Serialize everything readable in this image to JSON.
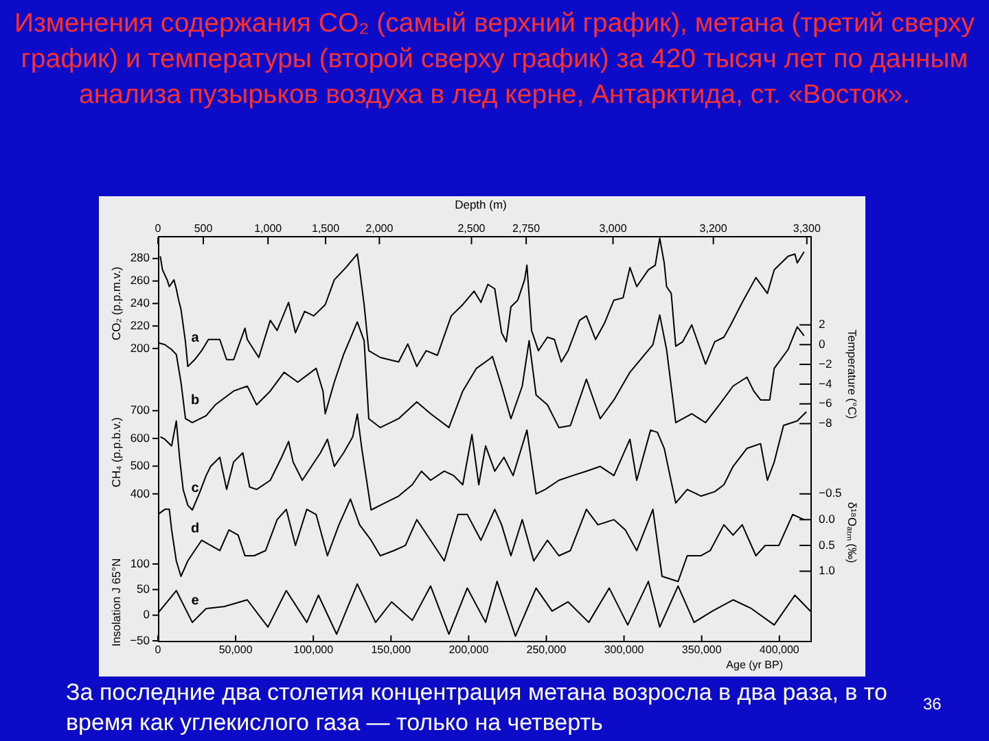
{
  "chart_data": [
    {
      "type": "line",
      "title": "Изменения содержания CO₂ (самый верхний график), метана (третий сверху график) и температуры (второй сверху график) за 420 тысяч лет по данным анализа пузырьков воздуха в лед керне, Антарктида, ст.  «Восток».",
      "ylabel": "CO₂ (p.p.m.v.)",
      "y2label": "Temperature (°C)",
      "y3label": "CH₄ (p.p.b.v.)",
      "annotations": [
        "Depth (m)",
        "За последние два столетия концентрация метана  возросла в два раза, в то время как углекислого газа — только на четверть",
        "36",
        "0",
        "500",
        "1,000",
        "1,500",
        "2,000",
        "2,500",
        "2,750",
        "3,000",
        "3,200",
        "3,300"
      ],
      "xlim": [
        0,
        420000
      ],
      "tick_labels": "y",
      "ylim": [
        -60,
        300
      ],
      "yticks": [
        200,
        220,
        240,
        260,
        280
      ],
      "y2lim": [
        -30,
        11
      ],
      "y2ticks": [
        2,
        0,
        -2,
        -4,
        -6,
        -8
      ],
      "y3lim": [
        -130,
        1330
      ],
      "y3ticks": [
        400,
        500,
        600,
        700
      ],
      "series": [
        {
          "name": "a",
          "color": "#000000",
          "x": [
            1500,
            2900,
            5900,
            7300,
            10300,
            11800,
            13300,
            14800,
            17700,
            19200,
            23600,
            28100,
            32500,
            39800,
            44200,
            48700,
            56000,
            57500,
            64900,
            72300,
            76700,
            84100,
            88500,
            94400,
            100300,
            107700,
            113500,
            121000,
            128300,
            129800,
            132700,
            135700,
            143100,
            154900,
            160800,
            166600,
            172600,
            179900,
            188800,
            196200,
            203500,
            207900,
            212400,
            216800,
            221200,
            224200,
            227200,
            231600,
            236000,
            237500,
            240500,
            244900,
            250700,
            255200,
            259600,
            264000,
            271400,
            275800,
            281700,
            287600,
            293500,
            299400,
            303800,
            308200,
            315700,
            320100,
            323000,
            325900,
            327400,
            330400,
            333300,
            337800,
            343600,
            352500,
            358400,
            364300,
            368700,
            376100,
            384900,
            392300,
            396700,
            405600,
            410000,
            411500,
            415900
          ],
          "values": [
            282,
            270,
            261,
            255,
            261,
            253,
            243,
            235,
            206,
            184,
            190,
            198,
            208,
            208,
            190,
            190,
            218,
            208,
            192,
            225,
            216,
            241,
            214,
            233,
            229,
            239,
            261,
            272,
            284,
            270,
            239,
            198,
            192,
            188,
            204,
            184,
            198,
            194,
            229,
            239,
            251,
            241,
            257,
            253,
            214,
            206,
            237,
            243,
            261,
            274,
            216,
            198,
            210,
            208,
            188,
            198,
            225,
            229,
            208,
            223,
            243,
            245,
            272,
            255,
            270,
            274,
            298,
            276,
            255,
            249,
            202,
            206,
            221,
            186,
            206,
            210,
            221,
            241,
            263,
            249,
            270,
            282,
            284,
            276,
            286
          ]
        },
        {
          "name": "b",
          "color": "#000000",
          "axis": "y2",
          "x": [
            0,
            4400,
            8800,
            11800,
            14800,
            17700,
            22100,
            31000,
            36900,
            48700,
            57500,
            63500,
            72300,
            81200,
            90000,
            101800,
            106200,
            107700,
            113500,
            119500,
            128300,
            132700,
            135700,
            143100,
            154900,
            166600,
            175500,
            187300,
            196200,
            205000,
            213900,
            215300,
            221200,
            227200,
            234500,
            238900,
            243400,
            250700,
            258100,
            265500,
            275800,
            284700,
            293500,
            303800,
            318600,
            323000,
            327400,
            333300,
            343600,
            352500,
            361300,
            370200,
            379100,
            383500,
            387900,
            393800,
            396700,
            405600,
            411500,
            415900
          ],
          "values": [
            0.2,
            0,
            -0.5,
            -1.0,
            -3.8,
            -7.5,
            -7.9,
            -7.2,
            -6.1,
            -4.7,
            -4.2,
            -6.1,
            -4.7,
            -2.8,
            -3.8,
            -2.4,
            -4.7,
            -7.0,
            -3.8,
            -1.0,
            2.3,
            0.4,
            -7.5,
            -8.4,
            -7.5,
            -5.8,
            -7.0,
            -8.4,
            -4.7,
            -2.4,
            -1.4,
            -1.2,
            -4.2,
            -7.5,
            -4.2,
            0.4,
            -5.1,
            -6.1,
            -8.4,
            -8.2,
            -3.5,
            -7.5,
            -5.6,
            -2.8,
            0,
            3.0,
            -0.5,
            -7.9,
            -7.0,
            -7.9,
            -6.1,
            -4.2,
            -3.3,
            -4.7,
            -5.6,
            -5.6,
            -2.4,
            -0.5,
            1.8,
            0.9
          ]
        },
        {
          "name": "c",
          "color": "#000000",
          "axis": "y3",
          "x": [
            1500,
            4400,
            8800,
            11800,
            13900,
            16200,
            19200,
            22100,
            26500,
            31000,
            33900,
            39800,
            44200,
            48700,
            54600,
            59000,
            63500,
            72300,
            79600,
            84100,
            87000,
            92900,
            98800,
            104600,
            109100,
            113500,
            119500,
            125400,
            128300,
            131200,
            137200,
            146000,
            154900,
            163700,
            169600,
            175500,
            184300,
            190300,
            196200,
            202100,
            206500,
            210900,
            216800,
            222700,
            228600,
            237500,
            243400,
            249300,
            258100,
            267000,
            275800,
            284700,
            293500,
            303800,
            308200,
            317100,
            321500,
            325900,
            333300,
            340700,
            349600,
            358400,
            364300,
            370200,
            379100,
            387900,
            392300,
            396700,
            402700,
            411500,
            417400
          ],
          "values": [
            606,
            597,
            573,
            663,
            532,
            416,
            359,
            342,
            400,
            466,
            499,
            532,
            416,
            515,
            548,
            425,
            416,
            449,
            532,
            589,
            515,
            449,
            499,
            548,
            597,
            499,
            548,
            606,
            688,
            564,
            342,
            367,
            392,
            433,
            482,
            449,
            482,
            466,
            433,
            614,
            433,
            573,
            482,
            532,
            466,
            630,
            400,
            416,
            449,
            466,
            482,
            499,
            466,
            597,
            449,
            630,
            622,
            564,
            367,
            416,
            392,
            408,
            433,
            499,
            564,
            581,
            449,
            515,
            647,
            663,
            696
          ]
        }
      ]
    },
    {
      "type": "line",
      "xlabel": "Age (yr BP)",
      "ylabel": "Insolation J 65°N",
      "y2label": "δ¹⁸Oₐₜₘ (‰)",
      "xlim": [
        0,
        420000
      ],
      "xticks": [
        0,
        {
          "value": 50000,
          "label": "50,000"
        },
        {
          "value": 100000,
          "label": "100,000"
        },
        {
          "value": 150000,
          "label": "150,000"
        },
        {
          "value": 200000,
          "label": "200,000"
        },
        {
          "value": 250000,
          "label": "250,000"
        },
        {
          "value": 300000,
          "label": "300,000"
        },
        {
          "value": 350000,
          "label": "350,000"
        },
        {
          "value": 400000,
          "label": "400,000"
        }
      ],
      "ylim": [
        -50,
        740
      ],
      "yticks": [
        -50,
        0,
        50,
        100
      ],
      "y2lim": [
        2.35,
        -5.5
      ],
      "y2ticks": [
        -0.5,
        {
          "value": 0,
          "label": "0.0"
        },
        0.5,
        {
          "value": 1,
          "label": "1.0"
        }
      ],
      "series": [
        {
          "name": "d",
          "color": "#000000",
          "axis": "y2",
          "x": [
            0,
            4400,
            7300,
            8800,
            11800,
            14800,
            19200,
            23600,
            28100,
            33900,
            39800,
            45700,
            51600,
            56000,
            61900,
            69300,
            76700,
            82600,
            88500,
            95800,
            101800,
            109100,
            116500,
            123900,
            129800,
            137200,
            143100,
            151900,
            159300,
            166600,
            175500,
            184300,
            193100,
            199100,
            207900,
            216800,
            221200,
            227200,
            234500,
            241900,
            250700,
            258100,
            265500,
            275800,
            283200,
            293500,
            300900,
            308200,
            318600,
            324500,
            334800,
            340700,
            349600,
            355500,
            364300,
            370200,
            376100,
            384900,
            390900,
            399700,
            408600,
            415900
          ],
          "values": [
            -0.1,
            -0.2,
            -0.2,
            0.2,
            0.8,
            1.1,
            0.8,
            0.6,
            0.4,
            0.5,
            0.6,
            0.2,
            0.3,
            0.7,
            0.7,
            0.6,
            0.0,
            -0.2,
            0.5,
            -0.2,
            -0.1,
            0.7,
            0.1,
            -0.4,
            0.1,
            0.4,
            0.7,
            0.6,
            0.5,
            0.0,
            0.4,
            0.8,
            -0.1,
            -0.1,
            0.4,
            -0.2,
            0.1,
            0.7,
            0.0,
            0.8,
            0.4,
            0.7,
            0.6,
            -0.2,
            0.1,
            0.0,
            0.2,
            0.6,
            -0.2,
            1.1,
            1.2,
            0.7,
            0.7,
            0.6,
            0.1,
            0.3,
            0.1,
            0.7,
            0.5,
            0.5,
            -0.1,
            0.0
          ]
        },
        {
          "name": "e",
          "color": "#000000",
          "x": [
            0,
            11800,
            22100,
            31000,
            42700,
            57500,
            70800,
            82600,
            95800,
            103300,
            115000,
            128300,
            140100,
            150400,
            163700,
            175500,
            187300,
            199100,
            210900,
            218300,
            230100,
            243400,
            253700,
            264000,
            277300,
            290500,
            302400,
            315700,
            323000,
            334800,
            345100,
            356900,
            370200,
            382000,
            396700,
            410000,
            420000
          ],
          "values": [
            4,
            48,
            -14,
            13,
            17,
            30,
            -23,
            48,
            -14,
            39,
            -37,
            61,
            -14,
            26,
            -10,
            57,
            -37,
            53,
            -14,
            66,
            -41,
            53,
            8,
            26,
            -14,
            53,
            -19,
            66,
            -23,
            57,
            -14,
            8,
            30,
            13,
            -19,
            39,
            8
          ]
        }
      ]
    }
  ]
}
